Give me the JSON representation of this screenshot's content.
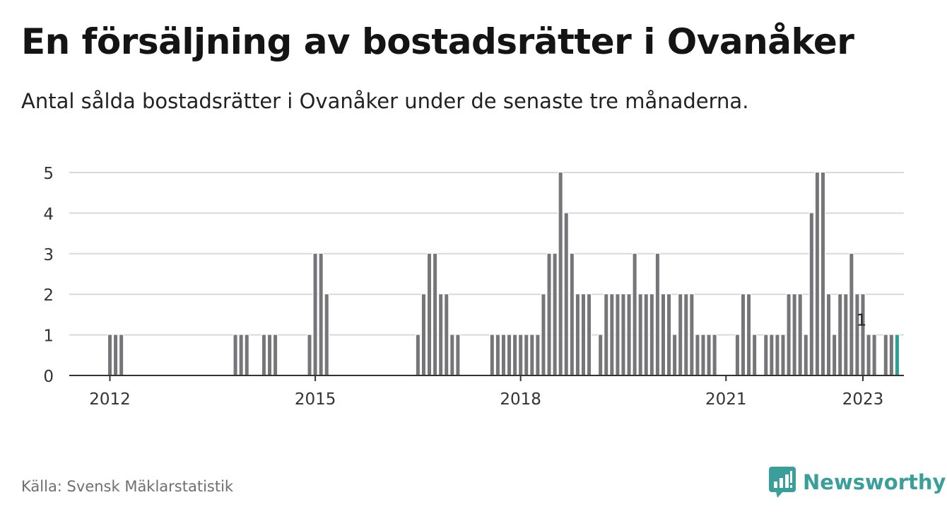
{
  "header": {
    "title": "En försäljning av bostadsrätter i Ovanåker",
    "subtitle": "Antal sålda bostadsrätter i Ovanåker under de senaste tre månaderna."
  },
  "footer": {
    "source": "Källa: Svensk Mäklarstatistik",
    "brand": "Newsworthy",
    "brand_icon": "bar-chart-speech-bubble-icon"
  },
  "colors": {
    "bar": "#76767a",
    "highlight": "#2aa198",
    "grid": "#d9d9d9",
    "axis": "#333333",
    "brand": "#3a9e9a"
  },
  "chart_data": {
    "type": "bar",
    "title": "En försäljning av bostadsrätter i Ovanåker",
    "xlabel": "",
    "ylabel": "",
    "ylim": [
      0,
      5
    ],
    "yticks": [
      "0",
      "1",
      "2",
      "3",
      "4",
      "5"
    ],
    "xticks": [
      "2012",
      "2015",
      "2018",
      "2021",
      "2023"
    ],
    "grid": true,
    "x_start": "2011-11",
    "x_end": "2023-01",
    "values": [
      0,
      0,
      1,
      1,
      1,
      0,
      0,
      0,
      0,
      0,
      0,
      0,
      0,
      0,
      0,
      0,
      0,
      0,
      0,
      0,
      0,
      0,
      0,
      0,
      1,
      1,
      1,
      0,
      0,
      1,
      1,
      1,
      0,
      0,
      0,
      0,
      0,
      1,
      3,
      3,
      2,
      0,
      0,
      0,
      0,
      0,
      0,
      0,
      0,
      0,
      0,
      0,
      0,
      0,
      0,
      0,
      1,
      2,
      3,
      3,
      2,
      2,
      1,
      1,
      0,
      0,
      0,
      0,
      0,
      1,
      1,
      1,
      1,
      1,
      1,
      1,
      1,
      1,
      2,
      3,
      3,
      5,
      4,
      3,
      2,
      2,
      2,
      0,
      1,
      2,
      2,
      2,
      2,
      2,
      3,
      2,
      2,
      2,
      3,
      2,
      2,
      1,
      2,
      2,
      2,
      1,
      1,
      1,
      1,
      0,
      0,
      0,
      1,
      2,
      2,
      1,
      0,
      1,
      1,
      1,
      1,
      2,
      2,
      2,
      1,
      4,
      5,
      5,
      2,
      1,
      2,
      2,
      3,
      2,
      2,
      1,
      1,
      0,
      1,
      1,
      1
    ],
    "highlight_last": true,
    "data_labels": [
      {
        "x": "2023-01",
        "value": 1,
        "text": "1"
      }
    ]
  }
}
